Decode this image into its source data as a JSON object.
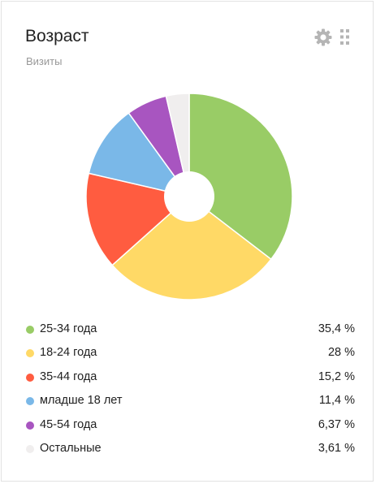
{
  "widget": {
    "title": "Возраст",
    "subtitle": "Визиты"
  },
  "icons": {
    "settings": "gear-icon",
    "drag": "drag-handle-icon"
  },
  "chart_data": {
    "type": "pie",
    "donut": true,
    "categories": [
      "25-34 года",
      "18-24 года",
      "35-44 года",
      "младше 18 лет",
      "45-54 года",
      "Остальные"
    ],
    "values": [
      35.4,
      28,
      15.2,
      11.4,
      6.37,
      3.61
    ],
    "value_labels": [
      "35,4 %",
      "28 %",
      "15,2 %",
      "11,4 %",
      "6,37 %",
      "3,61 %"
    ],
    "colors": [
      "#99cc66",
      "#ffd966",
      "#ff5c40",
      "#7ab8e8",
      "#a855c0",
      "#f0eeee"
    ],
    "legend_placement": "bottom"
  }
}
